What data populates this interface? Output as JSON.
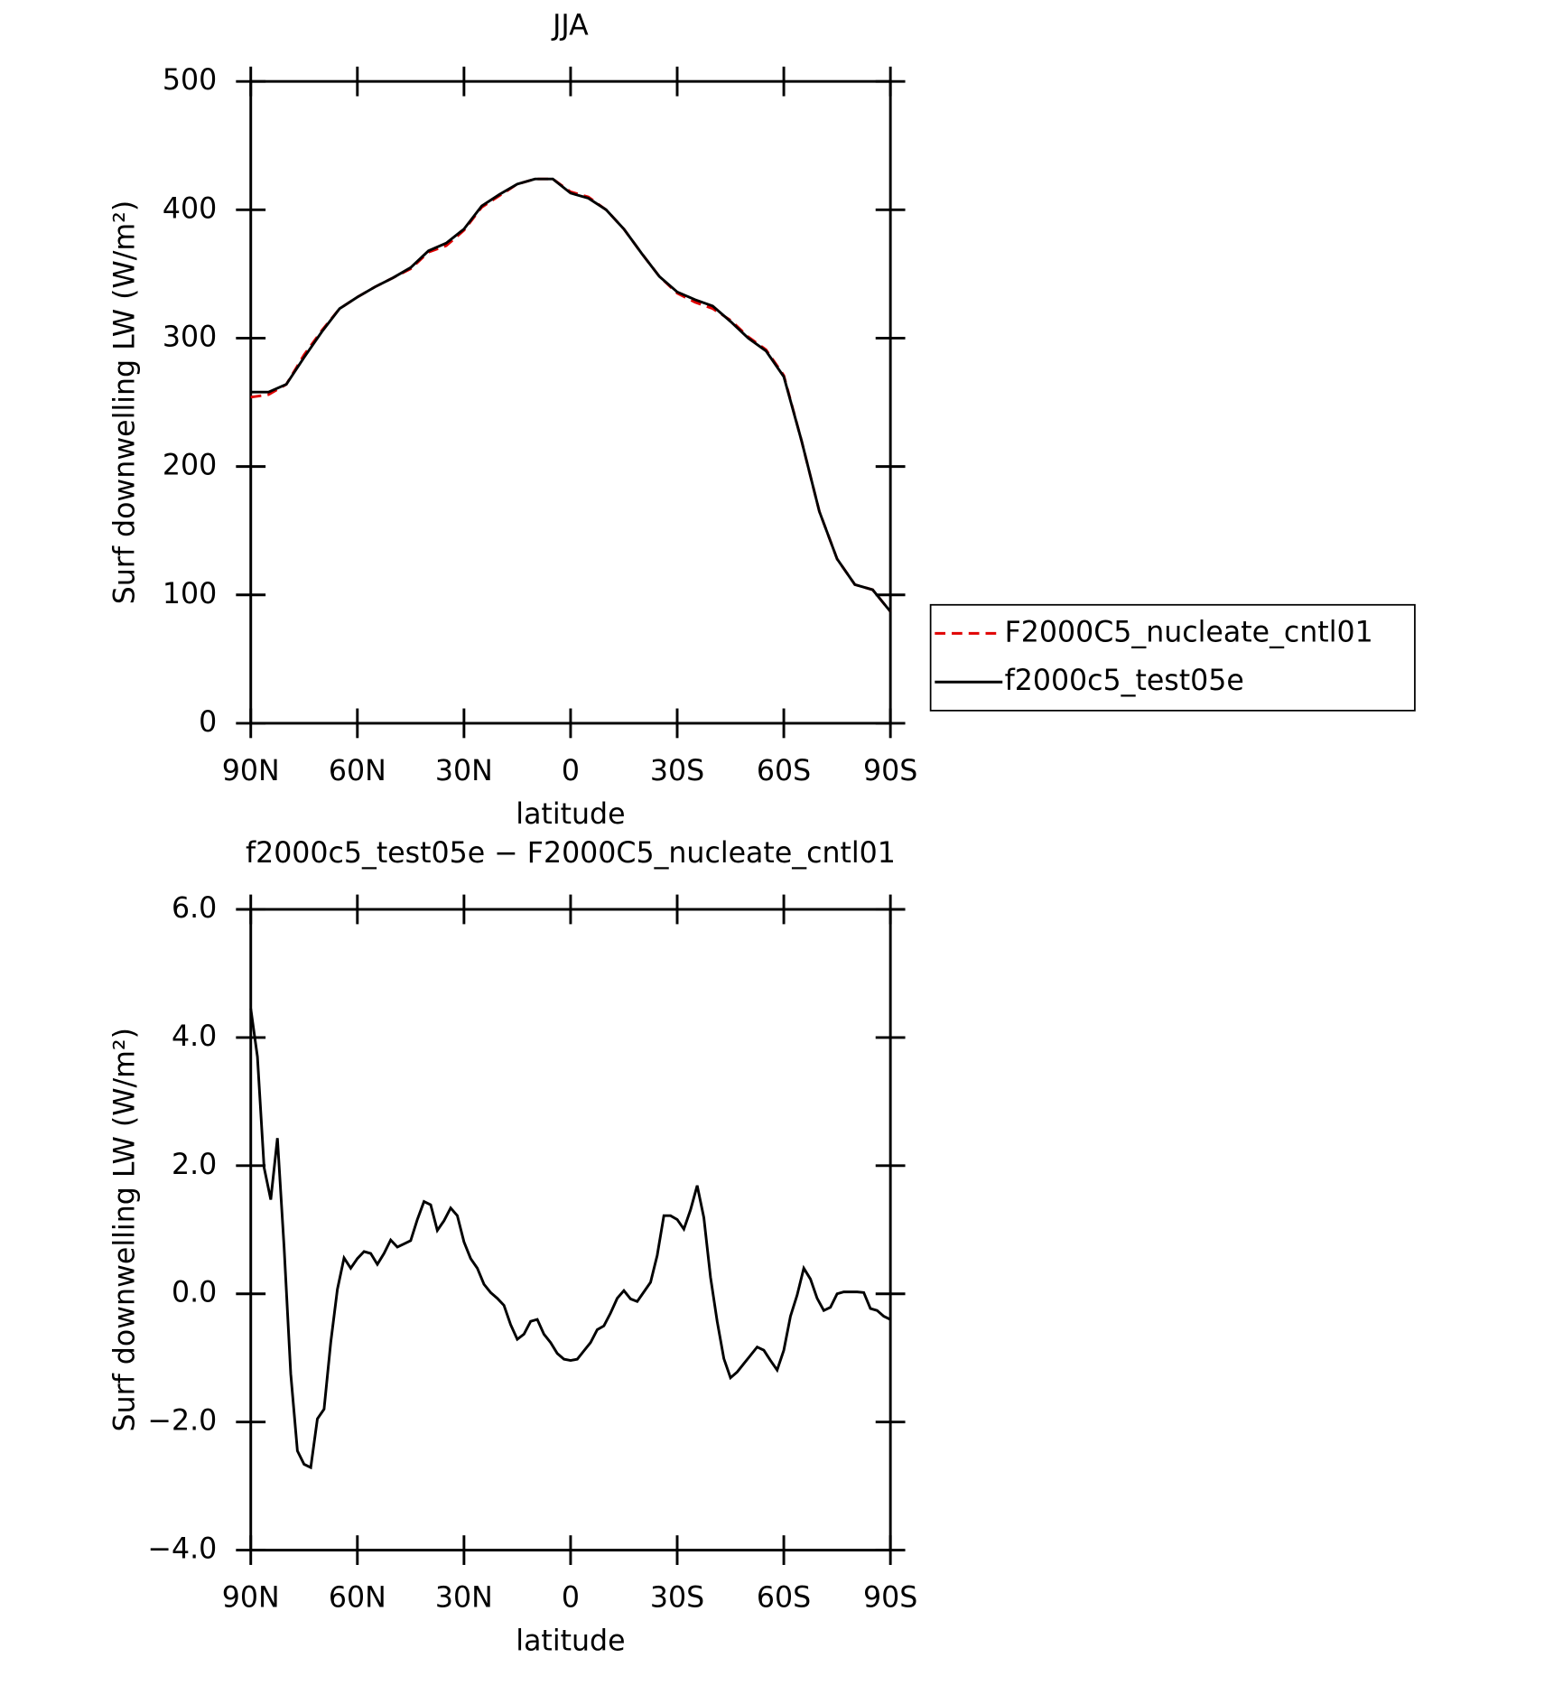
{
  "chart_data": [
    {
      "type": "line",
      "title": "JJA",
      "xlabel": "latitude",
      "ylabel": "Surf downwelling LW (W/m²)",
      "x": [
        90,
        85,
        80,
        75,
        70,
        65,
        60,
        55,
        50,
        45,
        40,
        35,
        30,
        25,
        20,
        15,
        10,
        5,
        0,
        -5,
        -10,
        -15,
        -20,
        -25,
        -30,
        -35,
        -40,
        -45,
        -50,
        -55,
        -60,
        -65,
        -70,
        -75,
        -80,
        -85,
        -90
      ],
      "xlim": [
        90,
        -90
      ],
      "xticks": [
        {
          "value": 90,
          "label": "90N"
        },
        {
          "value": 60,
          "label": "60N"
        },
        {
          "value": 30,
          "label": "30N"
        },
        0,
        {
          "value": -30,
          "label": "30S"
        },
        {
          "value": -60,
          "label": "60S"
        },
        {
          "value": -90,
          "label": "90S"
        }
      ],
      "ylim": [
        0,
        500
      ],
      "yticks": [
        0,
        100,
        200,
        300,
        400,
        500
      ],
      "legend": "outside-right",
      "series": [
        {
          "name": "F2000C5_nucleate_cntl01",
          "color": "#e00000",
          "line_style": "dashed",
          "values": [
            254,
            256,
            264,
            287,
            306,
            323,
            332,
            340,
            347,
            354,
            367,
            372,
            384,
            402,
            411,
            420,
            424,
            424,
            414,
            410,
            400,
            385,
            366,
            348,
            335,
            328,
            323,
            314,
            301,
            291,
            271,
            220,
            165,
            128,
            108,
            104,
            87
          ]
        },
        {
          "name": "f2000c5_test05e",
          "color": "#000000",
          "line_style": "solid",
          "values": [
            258,
            258,
            264,
            285,
            305,
            323,
            332,
            340,
            347,
            355,
            368,
            374,
            385,
            403,
            412,
            420,
            424,
            424,
            413,
            409,
            400,
            385,
            366,
            348,
            336,
            330,
            325,
            313,
            300,
            290,
            270,
            220,
            165,
            128,
            108,
            104,
            87
          ]
        }
      ]
    },
    {
      "type": "line",
      "title": "f2000c5_test05e − F2000C5_nucleate_cntl01",
      "xlabel": "latitude",
      "ylabel": "Surf downwelling LW (W/m²)",
      "x": [
        90,
        88.125,
        86.25,
        84.375,
        82.5,
        80.625,
        78.75,
        76.875,
        75,
        73.125,
        71.25,
        69.375,
        67.5,
        65.625,
        63.75,
        61.875,
        60,
        58.125,
        56.25,
        54.375,
        52.5,
        50.625,
        48.75,
        46.875,
        45,
        43.125,
        41.25,
        39.375,
        37.5,
        35.625,
        33.75,
        31.875,
        30,
        28.125,
        26.25,
        24.375,
        22.5,
        20.625,
        18.75,
        16.875,
        15,
        13.125,
        11.25,
        9.375,
        7.5,
        5.625,
        3.75,
        1.875,
        0,
        -1.875,
        -3.75,
        -5.625,
        -7.5,
        -9.375,
        -11.25,
        -13.125,
        -15,
        -16.875,
        -18.75,
        -20.625,
        -22.5,
        -24.375,
        -26.25,
        -28.125,
        -30,
        -31.875,
        -33.75,
        -35.625,
        -37.5,
        -39.375,
        -41.25,
        -43.125,
        -45,
        -46.875,
        -48.75,
        -50.625,
        -52.5,
        -54.375,
        -56.25,
        -58.125,
        -60,
        -61.875,
        -63.75,
        -65.625,
        -67.5,
        -69.375,
        -71.25,
        -73.125,
        -75,
        -76.875,
        -78.75,
        -80.625,
        -82.5,
        -84.375,
        -86.25,
        -88.125,
        -90
      ],
      "xlim": [
        90,
        -90
      ],
      "xticks": [
        {
          "value": 90,
          "label": "90N"
        },
        {
          "value": 60,
          "label": "60N"
        },
        {
          "value": 30,
          "label": "30N"
        },
        0,
        {
          "value": -30,
          "label": "30S"
        },
        {
          "value": -60,
          "label": "60S"
        },
        {
          "value": -90,
          "label": "90S"
        }
      ],
      "ylim": [
        -4,
        6
      ],
      "yticks": [
        {
          "value": -4,
          "label": "−4.0"
        },
        {
          "value": -2,
          "label": "−2.0"
        },
        {
          "value": 0,
          "label": "0.0"
        },
        {
          "value": 2,
          "label": "2.0"
        },
        {
          "value": 4,
          "label": "4.0"
        },
        {
          "value": 6,
          "label": "6.0"
        }
      ],
      "series": [
        {
          "color": "#000000",
          "line_style": "solid",
          "values": [
            4.45,
            3.7,
            1.97,
            1.47,
            2.43,
            0.73,
            -1.25,
            -2.45,
            -2.66,
            -2.71,
            -1.95,
            -1.8,
            -0.76,
            0.07,
            0.56,
            0.4,
            0.55,
            0.66,
            0.63,
            0.46,
            0.63,
            0.84,
            0.73,
            0.78,
            0.83,
            1.16,
            1.44,
            1.39,
            0.99,
            1.14,
            1.34,
            1.22,
            0.81,
            0.55,
            0.4,
            0.15,
            0.02,
            -0.07,
            -0.18,
            -0.48,
            -0.71,
            -0.63,
            -0.43,
            -0.4,
            -0.63,
            -0.76,
            -0.93,
            -1.02,
            -1.04,
            -1.02,
            -0.89,
            -0.76,
            -0.56,
            -0.5,
            -0.3,
            -0.07,
            0.05,
            -0.08,
            -0.12,
            0.03,
            0.18,
            0.6,
            1.22,
            1.22,
            1.16,
            1.01,
            1.31,
            1.69,
            1.19,
            0.26,
            -0.43,
            -1.01,
            -1.31,
            -1.22,
            -1.09,
            -0.96,
            -0.83,
            -0.88,
            -1.04,
            -1.19,
            -0.88,
            -0.35,
            -0.02,
            0.4,
            0.23,
            -0.07,
            -0.26,
            -0.21,
            0,
            0.03,
            0.03,
            0.03,
            0.02,
            -0.23,
            -0.26,
            -0.35,
            -0.4
          ]
        }
      ]
    }
  ]
}
